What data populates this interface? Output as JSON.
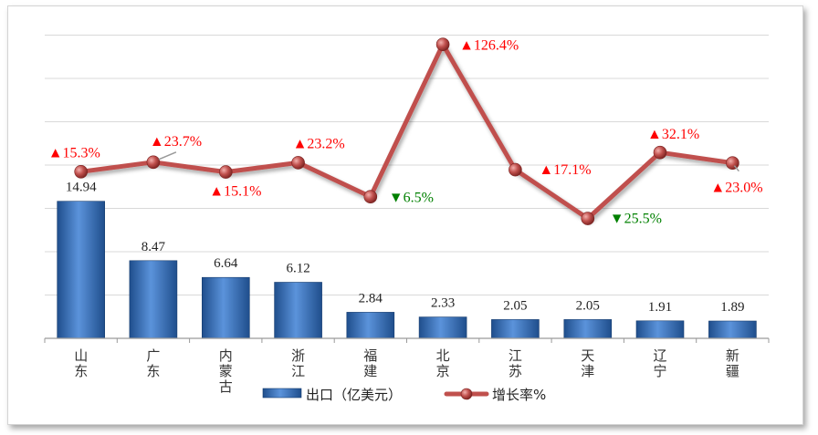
{
  "chart_data": {
    "type": "bar",
    "categories": [
      [
        "山",
        "东"
      ],
      [
        "广",
        "东"
      ],
      [
        "内",
        "蒙",
        "古"
      ],
      [
        "浙",
        "江"
      ],
      [
        "福",
        "建"
      ],
      [
        "北",
        "京"
      ],
      [
        "江",
        "苏"
      ],
      [
        "天",
        "津"
      ],
      [
        "辽",
        "宁"
      ],
      [
        "新",
        "疆"
      ]
    ],
    "series": [
      {
        "name": "出口（亿美元）",
        "kind": "bar",
        "values": [
          14.94,
          8.47,
          6.64,
          6.12,
          2.84,
          2.33,
          2.05,
          2.05,
          1.91,
          1.89
        ],
        "labels": [
          "14.94",
          "8.47",
          "6.64",
          "6.12",
          "2.84",
          "2.33",
          "2.05",
          "2.05",
          "1.91",
          "1.89"
        ],
        "color": "#3d78c8"
      },
      {
        "name": "增长率%",
        "kind": "line",
        "values": [
          15.3,
          23.7,
          15.1,
          23.2,
          -6.5,
          126.4,
          17.1,
          -25.5,
          32.1,
          23.0
        ],
        "labels": [
          "▲15.3%",
          "▲23.7%",
          "▲15.1%",
          "▲23.2%",
          "▼6.5%",
          "▲126.4%",
          "▲17.1%",
          "▼25.5%",
          "▲32.1%",
          "▲23.0%"
        ],
        "color": "#c0504d"
      }
    ],
    "bar_ylim": [
      0,
      35
    ],
    "line_ylim": [
      -130,
      150
    ],
    "grid": true,
    "legend": "bottom",
    "colors": {
      "up": "#ff0000",
      "down": "#008000",
      "gridline": "#d9d9d9"
    }
  }
}
